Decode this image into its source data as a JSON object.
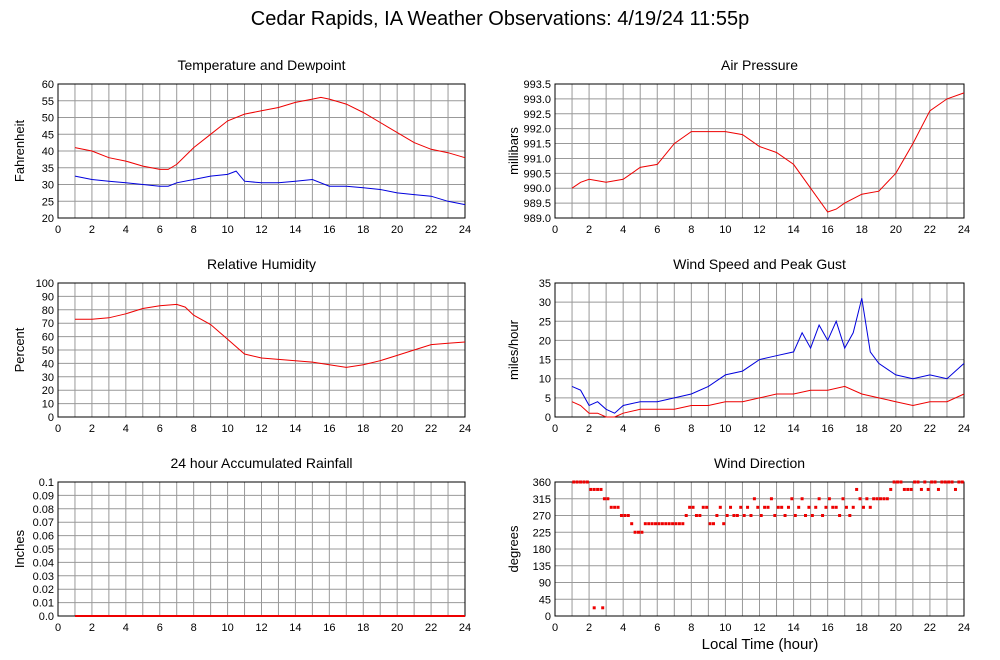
{
  "title": "Cedar Rapids, IA Weather Observations: 4/19/24 11:55p",
  "xlabel": "Local Time (hour)",
  "colors": {
    "red": "#ee0000",
    "blue": "#0000dd",
    "grid": "#999999",
    "frame": "#000000"
  },
  "chart_data": [
    {
      "type": "line",
      "title": "Temperature and Dewpoint",
      "ylabel": "Fahrenheit",
      "xlim": [
        0,
        24
      ],
      "ylim": [
        20,
        60
      ],
      "xticks": [
        0,
        2,
        4,
        6,
        8,
        10,
        12,
        14,
        16,
        18,
        20,
        22,
        24
      ],
      "yticks": [
        20,
        25,
        30,
        35,
        40,
        45,
        50,
        55,
        60
      ],
      "grid": true,
      "series": [
        {
          "color": "red",
          "x": [
            1,
            2,
            3,
            4,
            5,
            6,
            6.5,
            7,
            8,
            9,
            10,
            11,
            12,
            13,
            14,
            15,
            15.5,
            16,
            17,
            18,
            19,
            20,
            21,
            22,
            23,
            24
          ],
          "values": [
            41,
            40,
            38,
            37,
            35.5,
            34.5,
            34.5,
            36,
            41,
            45,
            49,
            51,
            52,
            53,
            54.5,
            55.5,
            56,
            55.5,
            54,
            51.5,
            48.5,
            45.5,
            42.5,
            40.5,
            39.5,
            38
          ]
        },
        {
          "color": "blue",
          "x": [
            1,
            2,
            3,
            4,
            5,
            6,
            6.5,
            7,
            8,
            9,
            10,
            10.5,
            11,
            12,
            13,
            14,
            15,
            16,
            17,
            18,
            19,
            20,
            21,
            22,
            23,
            24
          ],
          "values": [
            32.5,
            31.5,
            31,
            30.5,
            30,
            29.5,
            29.5,
            30.5,
            31.5,
            32.5,
            33,
            34,
            31,
            30.5,
            30.5,
            31,
            31.5,
            29.5,
            29.5,
            29,
            28.5,
            27.5,
            27,
            26.5,
            25,
            24
          ]
        }
      ]
    },
    {
      "type": "line",
      "title": "Air Pressure",
      "ylabel": "millibars",
      "xlim": [
        0,
        24
      ],
      "ylim": [
        989.0,
        993.5
      ],
      "xticks": [
        0,
        2,
        4,
        6,
        8,
        10,
        12,
        14,
        16,
        18,
        20,
        22,
        24
      ],
      "yticks": [
        989.0,
        989.5,
        990.0,
        990.5,
        991.0,
        991.5,
        992.0,
        992.5,
        993.0,
        993.5
      ],
      "ytick_labels": [
        "989.0",
        "989.5",
        "990.0",
        "990.5",
        "991.0",
        "991.5",
        "992.0",
        "992.5",
        "993.0",
        "993.5"
      ],
      "grid": true,
      "series": [
        {
          "color": "red",
          "x": [
            1,
            1.5,
            2,
            3,
            4,
            5,
            6,
            7,
            8,
            9,
            10,
            11,
            12,
            13,
            14,
            15,
            16,
            16.5,
            17,
            18,
            19,
            20,
            21,
            22,
            23,
            24
          ],
          "values": [
            990.0,
            990.2,
            990.3,
            990.2,
            990.3,
            990.7,
            990.8,
            991.5,
            991.9,
            991.9,
            991.9,
            991.8,
            991.4,
            991.2,
            990.8,
            990.0,
            989.2,
            989.3,
            989.5,
            989.8,
            989.9,
            990.5,
            991.5,
            992.6,
            993.0,
            993.2
          ]
        }
      ]
    },
    {
      "type": "line",
      "title": "Relative Humidity",
      "ylabel": "Percent",
      "xlim": [
        0,
        24
      ],
      "ylim": [
        0,
        100
      ],
      "xticks": [
        0,
        2,
        4,
        6,
        8,
        10,
        12,
        14,
        16,
        18,
        20,
        22,
        24
      ],
      "yticks": [
        0,
        10,
        20,
        30,
        40,
        50,
        60,
        70,
        80,
        90,
        100
      ],
      "grid": true,
      "series": [
        {
          "color": "red",
          "x": [
            1,
            2,
            3,
            4,
            5,
            6,
            7,
            7.5,
            8,
            9,
            10,
            11,
            12,
            13,
            14,
            15,
            16,
            17,
            18,
            19,
            20,
            21,
            22,
            23,
            24
          ],
          "values": [
            73,
            73,
            74,
            77,
            81,
            83,
            84,
            82,
            76,
            69,
            58,
            47,
            44,
            43,
            42,
            41,
            39,
            37,
            39,
            42,
            46,
            50,
            54,
            55,
            56
          ]
        }
      ]
    },
    {
      "type": "line",
      "title": "Wind Speed and Peak Gust",
      "ylabel": "miles/hour",
      "xlim": [
        0,
        24
      ],
      "ylim": [
        0,
        35
      ],
      "xticks": [
        0,
        2,
        4,
        6,
        8,
        10,
        12,
        14,
        16,
        18,
        20,
        22,
        24
      ],
      "yticks": [
        0,
        5,
        10,
        15,
        20,
        25,
        30,
        35
      ],
      "grid": true,
      "series": [
        {
          "color": "blue",
          "x": [
            1,
            1.5,
            2,
            2.5,
            3,
            3.5,
            4,
            5,
            6,
            7,
            8,
            9,
            10,
            11,
            12,
            13,
            14,
            14.5,
            15,
            15.5,
            16,
            16.5,
            17,
            17.5,
            18,
            18.5,
            19,
            20,
            21,
            22,
            23,
            24
          ],
          "values": [
            8,
            7,
            3,
            4,
            2,
            1,
            3,
            4,
            4,
            5,
            6,
            8,
            11,
            12,
            15,
            16,
            17,
            22,
            18,
            24,
            20,
            25,
            18,
            22,
            31,
            17,
            14,
            11,
            10,
            11,
            10,
            14
          ]
        },
        {
          "color": "red",
          "x": [
            1,
            1.5,
            2,
            2.5,
            3,
            3.5,
            4,
            5,
            6,
            7,
            8,
            9,
            10,
            11,
            12,
            13,
            14,
            15,
            16,
            17,
            18,
            19,
            20,
            21,
            22,
            23,
            24
          ],
          "values": [
            4,
            3,
            1,
            1,
            0,
            0,
            1,
            2,
            2,
            2,
            3,
            3,
            4,
            4,
            5,
            6,
            6,
            7,
            7,
            8,
            6,
            5,
            4,
            3,
            4,
            4,
            6
          ]
        }
      ]
    },
    {
      "type": "line",
      "title": "24 hour Accumulated Rainfall",
      "ylabel": "Inches",
      "xlim": [
        0,
        24
      ],
      "ylim": [
        0,
        0.1
      ],
      "xticks": [
        0,
        2,
        4,
        6,
        8,
        10,
        12,
        14,
        16,
        18,
        20,
        22,
        24
      ],
      "yticks": [
        0,
        0.01,
        0.02,
        0.03,
        0.04,
        0.05,
        0.06,
        0.07,
        0.08,
        0.09,
        0.1
      ],
      "ytick_labels": [
        "0.0",
        "0.01",
        "0.02",
        "0.03",
        "0.04",
        "0.05",
        "0.06",
        "0.07",
        "0.08",
        "0.09",
        "0.1"
      ],
      "grid": true,
      "series": [
        {
          "color": "red",
          "x": [
            1,
            24
          ],
          "values": [
            0,
            0
          ]
        }
      ]
    },
    {
      "type": "scatter",
      "title": "Wind Direction",
      "ylabel": "degrees",
      "xlim": [
        0,
        24
      ],
      "ylim": [
        0,
        360
      ],
      "xticks": [
        0,
        2,
        4,
        6,
        8,
        10,
        12,
        14,
        16,
        18,
        20,
        22,
        24
      ],
      "yticks": [
        0,
        45,
        90,
        135,
        180,
        225,
        270,
        315,
        360
      ],
      "grid": true,
      "series": [
        {
          "color": "red",
          "x": [
            1.1,
            1.3,
            1.5,
            1.7,
            1.9,
            2.1,
            2.3,
            2.5,
            2.7,
            2.9,
            3.1,
            3.3,
            3.5,
            3.7,
            3.9,
            4.1,
            4.3,
            4.5,
            4.7,
            4.9,
            5.1,
            5.3,
            5.5,
            5.7,
            5.9,
            6.1,
            6.3,
            6.5,
            6.7,
            6.9,
            7.1,
            7.3,
            7.5,
            7.7,
            7.9,
            8.1,
            8.3,
            8.5,
            8.7,
            8.9,
            9.1,
            9.3,
            9.5,
            9.7,
            9.9,
            10.1,
            10.3,
            10.5,
            10.7,
            10.9,
            11.1,
            11.3,
            11.5,
            11.7,
            11.9,
            12.1,
            12.3,
            12.5,
            12.7,
            12.9,
            13.1,
            13.3,
            13.5,
            13.7,
            13.9,
            14.1,
            14.3,
            14.5,
            14.7,
            14.9,
            15.1,
            15.3,
            15.5,
            15.7,
            15.9,
            16.1,
            16.3,
            16.5,
            16.7,
            16.9,
            17.1,
            17.3,
            17.5,
            17.7,
            17.9,
            18.1,
            18.3,
            18.5,
            18.7,
            18.9,
            19.1,
            19.3,
            19.5,
            19.7,
            19.9,
            20.1,
            20.3,
            20.5,
            20.7,
            20.9,
            21.1,
            21.3,
            21.5,
            21.7,
            21.9,
            22.1,
            22.3,
            22.5,
            22.7,
            22.9,
            23.1,
            23.3,
            23.5,
            23.7,
            23.9,
            2.3,
            2.8
          ],
          "values": [
            360,
            360,
            360,
            360,
            360,
            340,
            340,
            340,
            340,
            315,
            315,
            292,
            292,
            292,
            270,
            270,
            270,
            248,
            225,
            225,
            225,
            248,
            248,
            248,
            248,
            248,
            248,
            248,
            248,
            248,
            248,
            248,
            248,
            270,
            292,
            292,
            270,
            270,
            292,
            292,
            248,
            248,
            270,
            292,
            248,
            270,
            292,
            270,
            270,
            292,
            270,
            292,
            270,
            315,
            292,
            270,
            292,
            292,
            315,
            270,
            292,
            292,
            270,
            292,
            315,
            270,
            292,
            315,
            270,
            292,
            270,
            292,
            315,
            270,
            292,
            315,
            292,
            292,
            270,
            315,
            292,
            270,
            292,
            340,
            315,
            292,
            315,
            292,
            315,
            315,
            315,
            315,
            315,
            340,
            360,
            360,
            360,
            340,
            340,
            340,
            360,
            360,
            340,
            360,
            340,
            360,
            360,
            340,
            360,
            360,
            360,
            360,
            340,
            360,
            360,
            22,
            22
          ]
        }
      ]
    }
  ]
}
